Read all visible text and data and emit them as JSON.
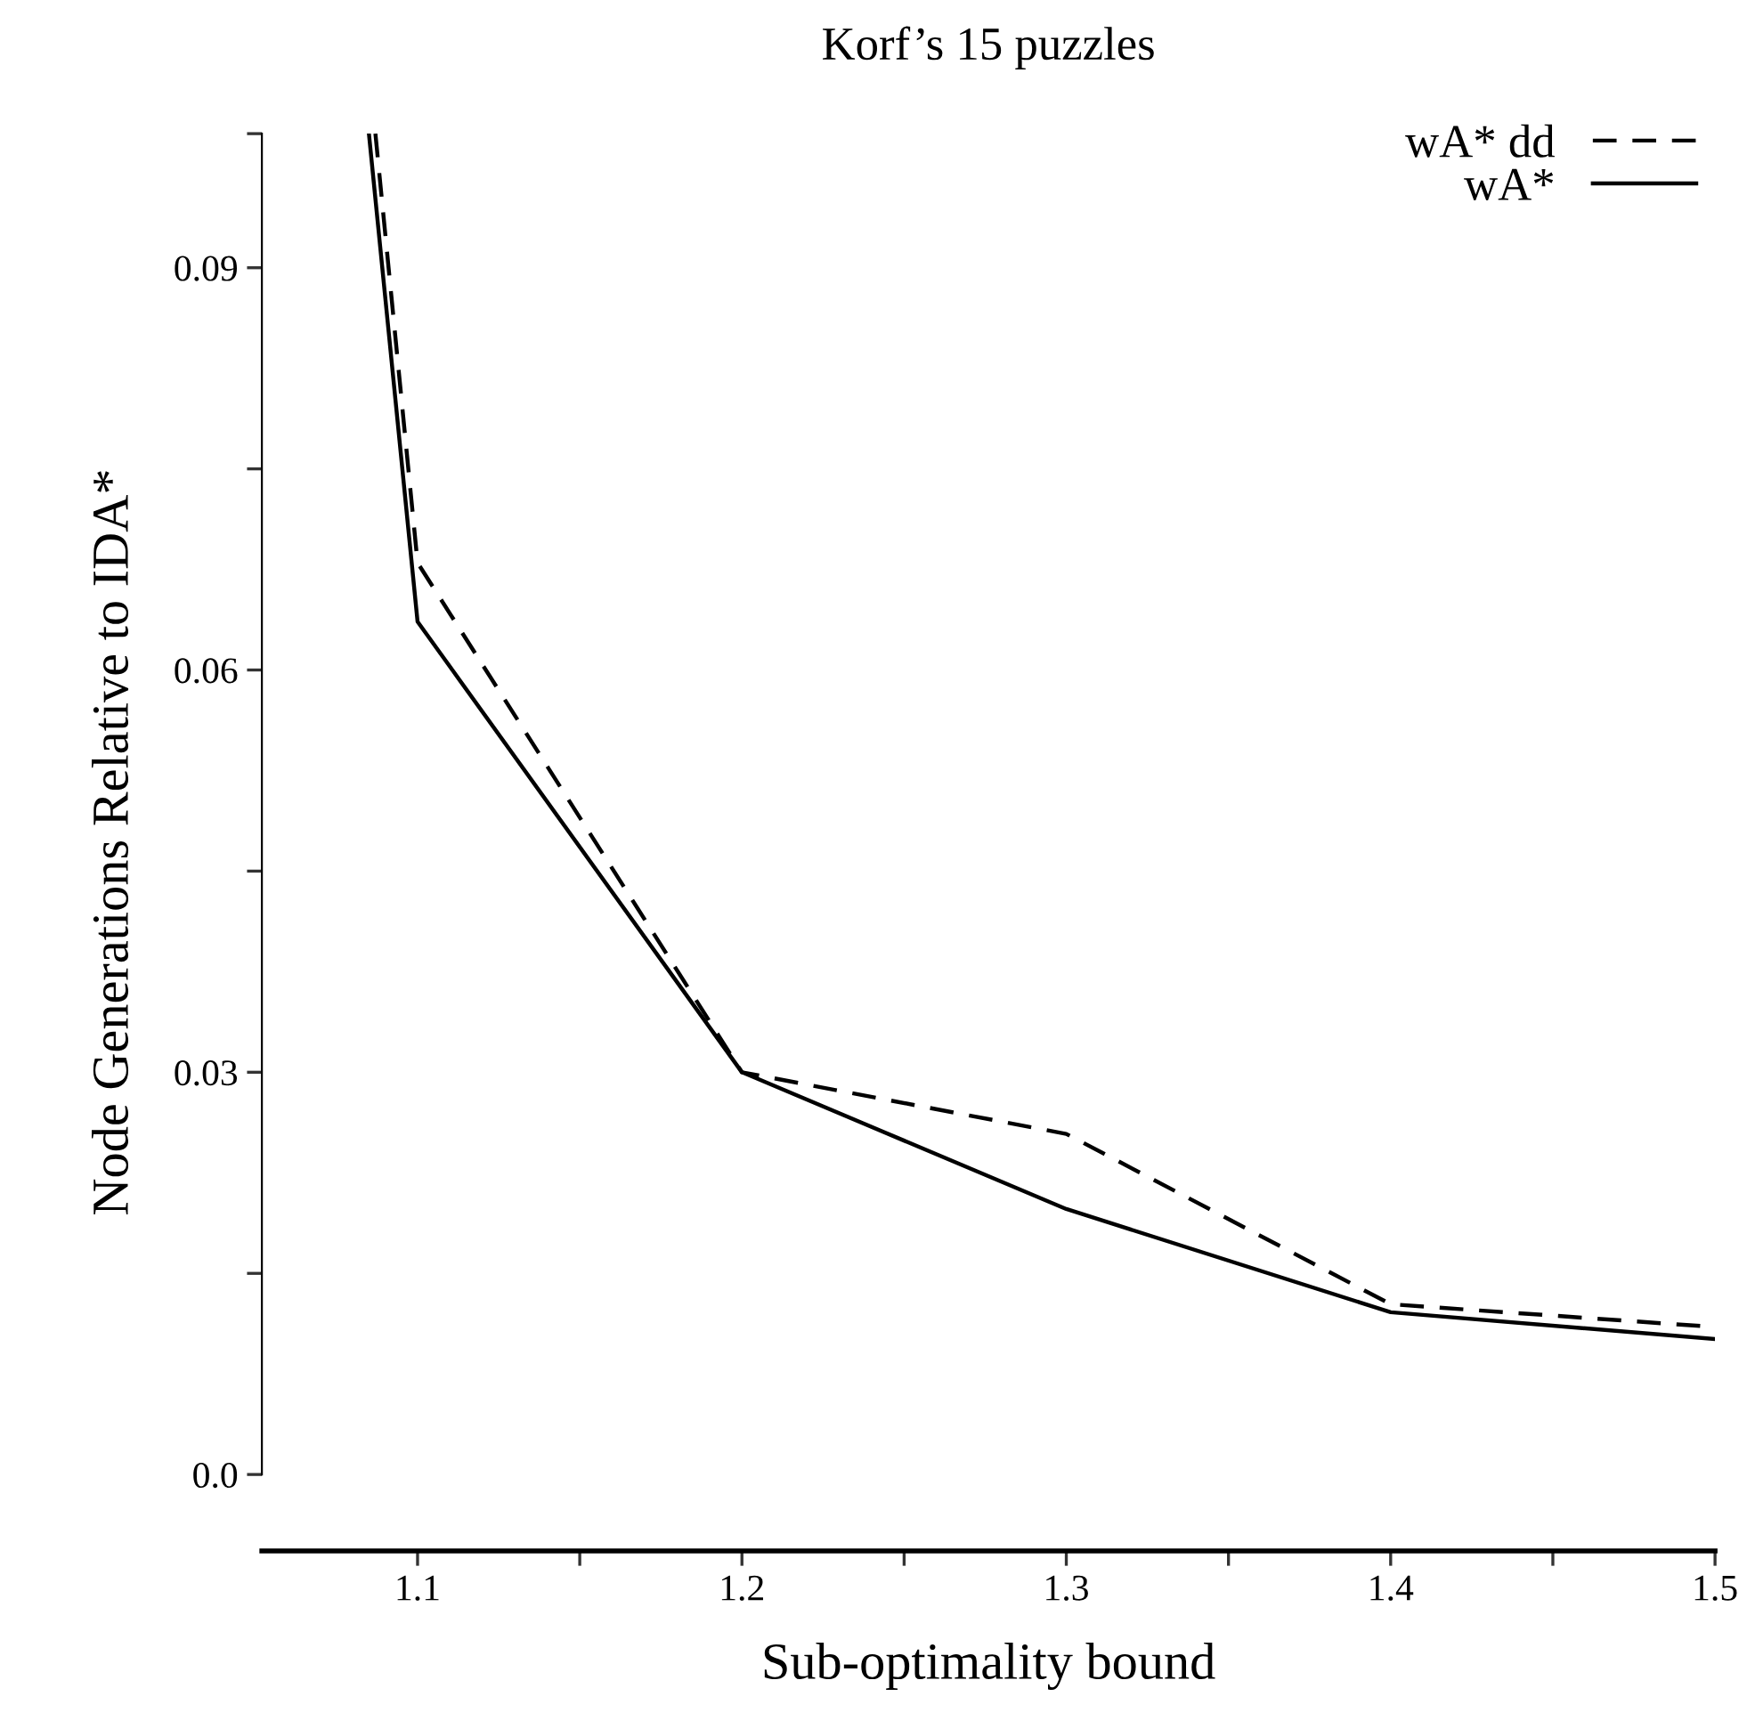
{
  "chart_data": {
    "type": "line",
    "title": "Korf’s 15 puzzles",
    "xlabel": "Sub-optimality bound",
    "ylabel": "Node Generations Relative to IDA*",
    "series": [
      {
        "name": "wA* dd",
        "color": "#000000",
        "line_style": "dashed",
        "x": [
          1.087,
          1.1,
          1.2,
          1.3,
          1.4,
          1.5
        ],
        "values": [
          0.1,
          0.068,
          0.03,
          0.0254,
          0.0127,
          0.011
        ]
      },
      {
        "name": "wA*",
        "color": "#000000",
        "line_style": "solid",
        "x": [
          1.085,
          1.1,
          1.2,
          1.3,
          1.4,
          1.5
        ],
        "values": [
          0.1,
          0.0636,
          0.03,
          0.0198,
          0.0121,
          0.0101
        ]
      }
    ],
    "xlim": [
      1.052,
      1.5
    ],
    "ylim": [
      -0.0057,
      0.1
    ],
    "xticks": [
      1.1,
      {
        "value": 1.15,
        "label": null
      },
      1.2,
      {
        "value": 1.25,
        "label": null
      },
      1.3,
      {
        "value": 1.35,
        "label": null
      },
      1.4,
      {
        "value": 1.45,
        "label": null
      },
      1.5
    ],
    "yticks": [
      {
        "value": 0,
        "label": "0.0"
      },
      {
        "value": 0.015,
        "label": null
      },
      0.03,
      {
        "value": 0.045,
        "label": null
      },
      0.06,
      {
        "value": 0.075,
        "label": null
      },
      0.09,
      {
        "value": 0.1,
        "label": null
      }
    ],
    "legend": "top right",
    "grid": false,
    "marker": "none"
  }
}
